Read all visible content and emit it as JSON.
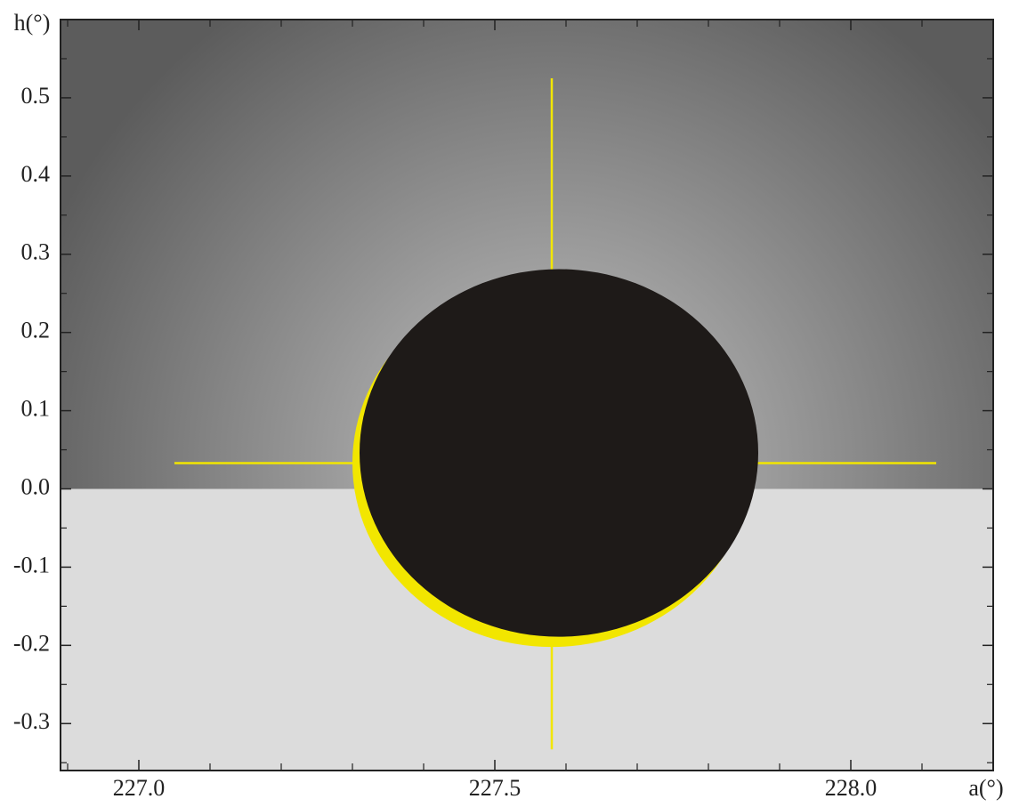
{
  "chart_data": {
    "type": "eclipse",
    "x_label": "a(°)",
    "y_label": "h(°)",
    "xlim": [
      226.89,
      228.2
    ],
    "ylim": [
      -0.36,
      0.6
    ],
    "xticks": [
      {
        "value": 227,
        "label": "227.0"
      },
      {
        "value": 227.5,
        "label": "227.5"
      },
      {
        "value": 228,
        "label": "228.0"
      }
    ],
    "x_minor_ticks": [
      226.9,
      227.1,
      227.2,
      227.3,
      227.4,
      227.6,
      227.7,
      227.8,
      227.9,
      228.1
    ],
    "yticks": [
      0.5,
      0.4,
      0.3,
      0.2,
      0.1,
      {
        "value": 0,
        "label": "0.0"
      },
      -0.1,
      -0.2,
      -0.3
    ],
    "y_minor_ticks": [
      0.55,
      0.45,
      0.35,
      0.25,
      0.15,
      0.05,
      -0.05,
      -0.15,
      -0.25,
      -0.35
    ],
    "horizon": 0,
    "sky_color": [
      "#c4c4c4",
      "#5c5c5c"
    ],
    "ground_color": "#dcdcdc",
    "sun": {
      "center": [
        227.58,
        0.033
      ],
      "radius_a": 0.28,
      "radius_h": 0.235,
      "color": "#f2e600"
    },
    "moon": {
      "center": [
        227.59,
        0.046
      ],
      "radius_a": 0.28,
      "radius_h": 0.235,
      "color": "#1e1a18"
    },
    "crosshair": {
      "color": "#f2e600",
      "a": 227.58,
      "h_range": [
        -0.333,
        0.525
      ],
      "h": 0.033,
      "a_range": [
        227.05,
        228.12
      ]
    }
  }
}
